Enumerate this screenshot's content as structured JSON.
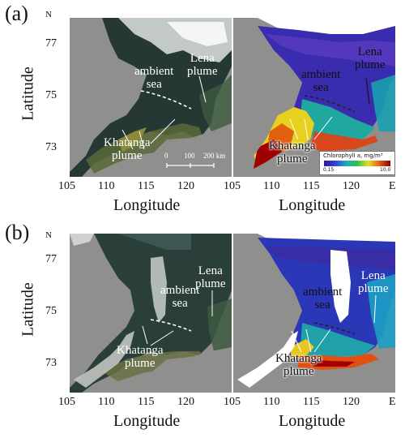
{
  "panels": [
    {
      "letter": "(a)",
      "ylabel": "Latitude",
      "north": "N",
      "lat_ticks": [
        "77",
        "75",
        "73"
      ],
      "left_map": {
        "lena": "Lena\nplume",
        "ambient": "ambient\nsea",
        "khatanga": "Khatanga\nplume",
        "scale": [
          "0",
          "100",
          "200 km"
        ]
      },
      "right_map": {
        "lena": "Lena\nplume",
        "ambient": "ambient\nsea",
        "khatanga": "Khatanga\nplume",
        "legend_title": "Chlorophyll a, mg/m³",
        "legend_min": "0.15",
        "legend_max": "10.0"
      },
      "lon_ticks_left": [
        "105",
        "110",
        "115",
        "120"
      ],
      "lon_ticks_right": [
        "105",
        "110",
        "115",
        "120"
      ],
      "east": "E",
      "xlabel_left": "Longitude",
      "xlabel_right": "Longitude"
    },
    {
      "letter": "(b)",
      "ylabel": "Latitude",
      "north": "N",
      "lat_ticks": [
        "77",
        "75",
        "73"
      ],
      "left_map": {
        "lena": "Lena\nplume",
        "ambient": "ambient\nsea",
        "khatanga": "Khatanga\nplume"
      },
      "right_map": {
        "lena": "Lena\nplume",
        "ambient": "ambient\nsea",
        "khatanga": "Khatanga\nplume"
      },
      "lon_ticks_left": [
        "105",
        "110",
        "115",
        "120"
      ],
      "lon_ticks_right": [
        "105",
        "110",
        "115",
        "120"
      ],
      "east": "E",
      "xlabel_left": "Longitude",
      "xlabel_right": "Longitude"
    }
  ],
  "colors": {
    "land": "#8f8f8d",
    "sea_true_color": "#2a3a36",
    "cloud": "#e8ecea",
    "chl_low": "#2a1a8a",
    "chl_high": "#8a0000"
  }
}
